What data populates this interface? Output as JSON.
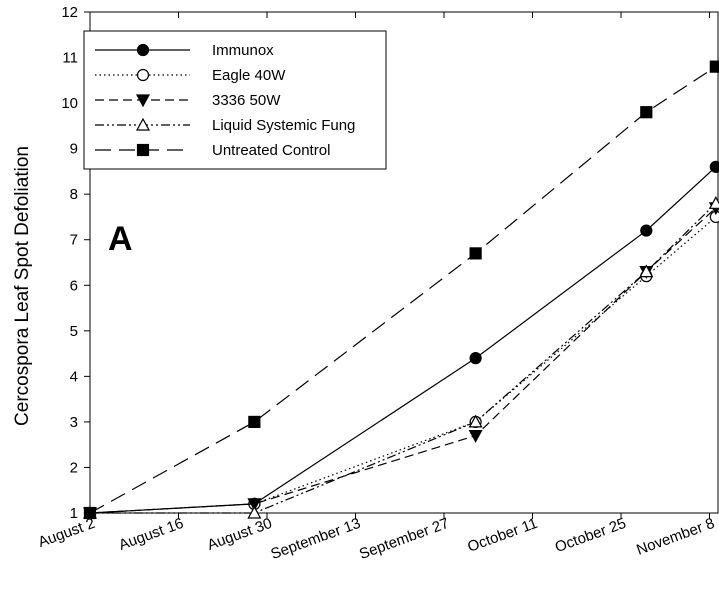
{
  "chart_data": {
    "type": "line",
    "title": "",
    "panel_label": "A",
    "ylabel": "Cercospora Leaf Spot Defoliation",
    "xlabel": "",
    "ylim": [
      1,
      12
    ],
    "yticks": [
      1,
      2,
      3,
      4,
      5,
      6,
      7,
      8,
      9,
      10,
      11,
      12
    ],
    "xticks": [
      {
        "label": "August 2",
        "day": 0
      },
      {
        "label": "August 16",
        "day": 14
      },
      {
        "label": "August 30",
        "day": 28
      },
      {
        "label": "September 13",
        "day": 42
      },
      {
        "label": "September 27",
        "day": 56
      },
      {
        "label": "October 11",
        "day": 70
      },
      {
        "label": "October 25",
        "day": 84
      },
      {
        "label": "November 8",
        "day": 98
      }
    ],
    "x": [
      0,
      26,
      61,
      88,
      99
    ],
    "x_units": "days after August 2",
    "grid": false,
    "legend_position": "top-left",
    "series": [
      {
        "name": "Immunox",
        "values": [
          1.0,
          1.2,
          4.4,
          7.2,
          8.6
        ],
        "marker": "circle",
        "fill": true,
        "dash": ""
      },
      {
        "name": "Eagle 40W",
        "values": [
          1.0,
          1.2,
          3.0,
          6.2,
          7.5
        ],
        "marker": "circle",
        "fill": false,
        "dash": "1.5,3"
      },
      {
        "name": "3336 50W",
        "values": [
          1.0,
          1.2,
          2.7,
          6.3,
          7.7
        ],
        "marker": "triangle-down",
        "fill": true,
        "dash": "9,5"
      },
      {
        "name": "Liquid Systemic Fung",
        "values": [
          1.0,
          1.0,
          3.0,
          6.3,
          7.8
        ],
        "marker": "triangle-up",
        "fill": false,
        "dash": "9,3,2,3,2,3"
      },
      {
        "name": "Untreated Control",
        "values": [
          1.0,
          3.0,
          6.7,
          9.8,
          10.8
        ],
        "marker": "square",
        "fill": true,
        "dash": "16,8"
      }
    ]
  }
}
